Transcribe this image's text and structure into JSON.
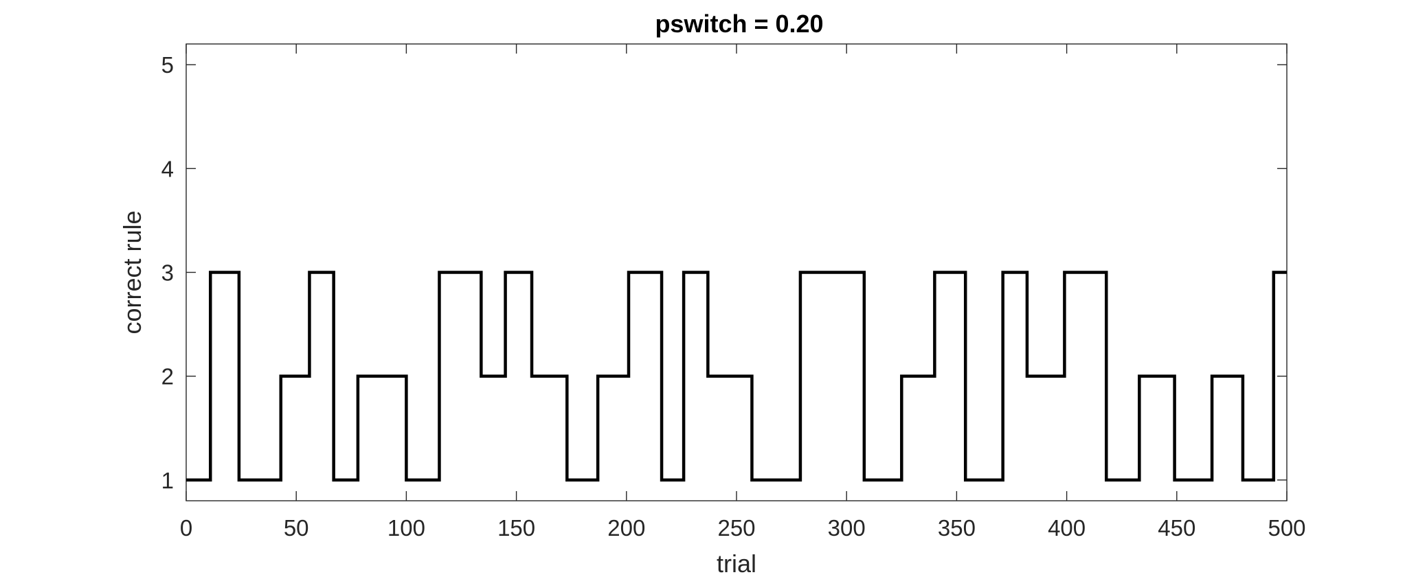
{
  "chart_data": {
    "type": "line",
    "title": "pswitch = 0.20",
    "xlabel": "trial",
    "ylabel": "correct rule",
    "xlim": [
      0,
      500
    ],
    "ylim": [
      0.8,
      5.2
    ],
    "x_ticks": [
      0,
      50,
      100,
      150,
      200,
      250,
      300,
      350,
      400,
      450,
      500
    ],
    "y_ticks": [
      1,
      2,
      3,
      4,
      5
    ],
    "grid": false,
    "line_color": "#000000",
    "steps": [
      {
        "x": 0,
        "y": 1
      },
      {
        "x": 11,
        "y": 3
      },
      {
        "x": 24,
        "y": 1
      },
      {
        "x": 43,
        "y": 2
      },
      {
        "x": 56,
        "y": 3
      },
      {
        "x": 67,
        "y": 1
      },
      {
        "x": 78,
        "y": 2
      },
      {
        "x": 100,
        "y": 1
      },
      {
        "x": 115,
        "y": 3
      },
      {
        "x": 134,
        "y": 2
      },
      {
        "x": 145,
        "y": 3
      },
      {
        "x": 157,
        "y": 2
      },
      {
        "x": 173,
        "y": 1
      },
      {
        "x": 187,
        "y": 2
      },
      {
        "x": 201,
        "y": 3
      },
      {
        "x": 216,
        "y": 1
      },
      {
        "x": 226,
        "y": 3
      },
      {
        "x": 237,
        "y": 2
      },
      {
        "x": 257,
        "y": 1
      },
      {
        "x": 279,
        "y": 3
      },
      {
        "x": 308,
        "y": 1
      },
      {
        "x": 325,
        "y": 2
      },
      {
        "x": 340,
        "y": 3
      },
      {
        "x": 354,
        "y": 1
      },
      {
        "x": 371,
        "y": 3
      },
      {
        "x": 382,
        "y": 2
      },
      {
        "x": 399,
        "y": 3
      },
      {
        "x": 418,
        "y": 1
      },
      {
        "x": 433,
        "y": 2
      },
      {
        "x": 449,
        "y": 1
      },
      {
        "x": 466,
        "y": 2
      },
      {
        "x": 480,
        "y": 1
      },
      {
        "x": 494,
        "y": 3
      }
    ]
  }
}
